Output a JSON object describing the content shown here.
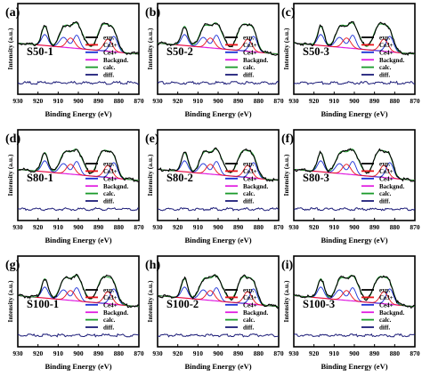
{
  "chart_data": [
    {
      "panel": "(a)",
      "sample": "S50-1",
      "type": "line",
      "xlabel": "Binding Energy (eV)",
      "ylabel": "Intensity (a.u.)",
      "xlim": [
        930,
        870
      ],
      "xticks": [
        930,
        920,
        910,
        900,
        890,
        880,
        870
      ],
      "x_reversed": true,
      "legend": [
        "exp.",
        "Ce3+",
        "Ce4+",
        "Backgnd.",
        "calc.",
        "diff."
      ],
      "legend_position": "right"
    },
    {
      "panel": "(b)",
      "sample": "S50-2",
      "type": "line",
      "xlabel": "Binding Energy (eV)",
      "ylabel": "Intensity (a.u.)",
      "xlim": [
        930,
        870
      ],
      "xticks": [
        930,
        920,
        910,
        900,
        890,
        880,
        870
      ],
      "x_reversed": true,
      "legend": [
        "exp.",
        "Ce3+",
        "Ce4+",
        "Backgnd.",
        "calc.",
        "diff."
      ],
      "legend_position": "right"
    },
    {
      "panel": "(c)",
      "sample": "S50-3",
      "type": "line",
      "xlabel": "Binding Energy (eV)",
      "ylabel": "Intensity (a.u.)",
      "xlim": [
        930,
        870
      ],
      "xticks": [
        930,
        920,
        910,
        900,
        890,
        880,
        870
      ],
      "x_reversed": true,
      "legend": [
        "exp.",
        "Ce3+",
        "Ce4+",
        "Backgnd.",
        "calc.",
        "diff."
      ],
      "legend_position": "right"
    },
    {
      "panel": "(d)",
      "sample": "S80-1",
      "type": "line",
      "xlabel": "Binding Energy (eV)",
      "ylabel": "Intensity (a.u.)",
      "xlim": [
        930,
        870
      ],
      "xticks": [
        930,
        920,
        910,
        900,
        890,
        880,
        870
      ],
      "x_reversed": true,
      "legend": [
        "exp.",
        "Ce3+",
        "Ce4+",
        "Backgnd.",
        "calc.",
        "diff."
      ],
      "legend_position": "right"
    },
    {
      "panel": "(e)",
      "sample": "S80-2",
      "type": "line",
      "xlabel": "Binding Energy (eV)",
      "ylabel": "Intensity (a.u.)",
      "xlim": [
        930,
        870
      ],
      "xticks": [
        930,
        920,
        910,
        900,
        890,
        880,
        870
      ],
      "x_reversed": true,
      "legend": [
        "exp.",
        "Ce3+",
        "Ce4+",
        "Backgnd.",
        "calc.",
        "diff."
      ],
      "legend_position": "right"
    },
    {
      "panel": "(f)",
      "sample": "S80-3",
      "type": "line",
      "xlabel": "Binding Energy (eV)",
      "ylabel": "Intensity (a.u.)",
      "xlim": [
        930,
        870
      ],
      "xticks": [
        930,
        920,
        910,
        900,
        890,
        880,
        870
      ],
      "x_reversed": true,
      "legend": [
        "exp.",
        "Ce3+",
        "Ce4+",
        "Backgnd.",
        "calc.",
        "diff."
      ],
      "legend_position": "right"
    },
    {
      "panel": "(g)",
      "sample": "S100-1",
      "type": "line",
      "xlabel": "Binding Energy (eV)",
      "ylabel": "Intensity (a.u.)",
      "xlim": [
        930,
        870
      ],
      "xticks": [
        930,
        920,
        910,
        900,
        890,
        880,
        870
      ],
      "x_reversed": true,
      "legend": [
        "exp.",
        "Ce3+",
        "Ce4+",
        "Backgnd.",
        "calc.",
        "diff."
      ],
      "legend_position": "right"
    },
    {
      "panel": "(h)",
      "sample": "S100-2",
      "type": "line",
      "xlabel": "Binding Energy (eV)",
      "ylabel": "Intensity (a.u.)",
      "xlim": [
        930,
        870
      ],
      "xticks": [
        930,
        920,
        910,
        900,
        890,
        880,
        870
      ],
      "x_reversed": true,
      "legend": [
        "exp.",
        "Ce3+",
        "Ce4+",
        "Backgnd.",
        "calc.",
        "diff."
      ],
      "legend_position": "right"
    },
    {
      "panel": "(i)",
      "sample": "S100-3",
      "type": "line",
      "xlabel": "Binding Energy (eV)",
      "ylabel": "Intensity (a.u.)",
      "xlim": [
        930,
        870
      ],
      "xticks": [
        930,
        920,
        910,
        900,
        890,
        880,
        870
      ],
      "x_reversed": true,
      "legend": [
        "exp.",
        "Ce3+",
        "Ce4+",
        "Backgnd.",
        "calc.",
        "diff."
      ],
      "legend_position": "right"
    }
  ],
  "series_colors": {
    "exp.": "#000000",
    "Ce3+": "#e8141b",
    "Ce4+": "#1a2ed6",
    "Backgnd.": "#e01ee0",
    "calc.": "#1a9a2a",
    "diff.": "#1c1c78"
  },
  "border_color": "#000000",
  "background_color": "#ffffff"
}
